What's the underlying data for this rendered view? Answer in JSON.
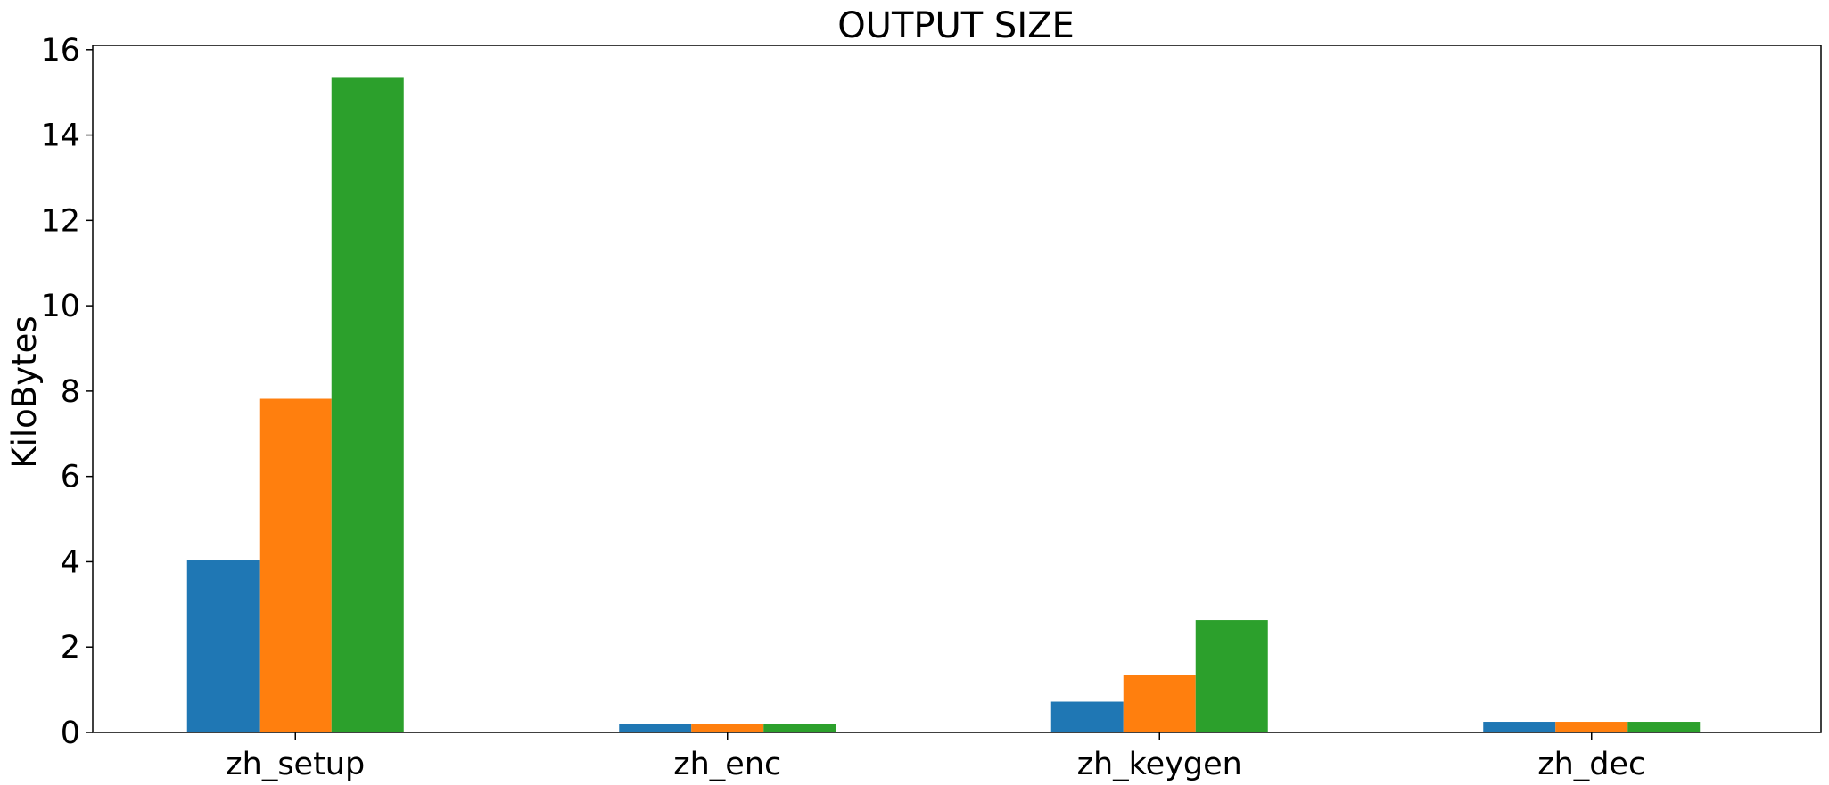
{
  "chart_data": {
    "type": "bar",
    "title": "OUTPUT SIZE",
    "xlabel": "",
    "ylabel": "KiloBytes",
    "categories": [
      "zh_setup",
      "zh_enc",
      "zh_keygen",
      "zh_dec"
    ],
    "series": [
      {
        "values": [
          4.03,
          0.19,
          0.72,
          0.25
        ],
        "color": "#1f77b4"
      },
      {
        "values": [
          7.82,
          0.19,
          1.35,
          0.25
        ],
        "color": "#ff7f0e"
      },
      {
        "values": [
          15.36,
          0.19,
          2.63,
          0.25
        ],
        "color": "#2ca02c"
      }
    ],
    "ylim": [
      0,
      16.1
    ],
    "yticks": [
      0,
      2,
      4,
      6,
      8,
      10,
      12,
      14,
      16
    ],
    "grid": false,
    "legend": "none"
  }
}
